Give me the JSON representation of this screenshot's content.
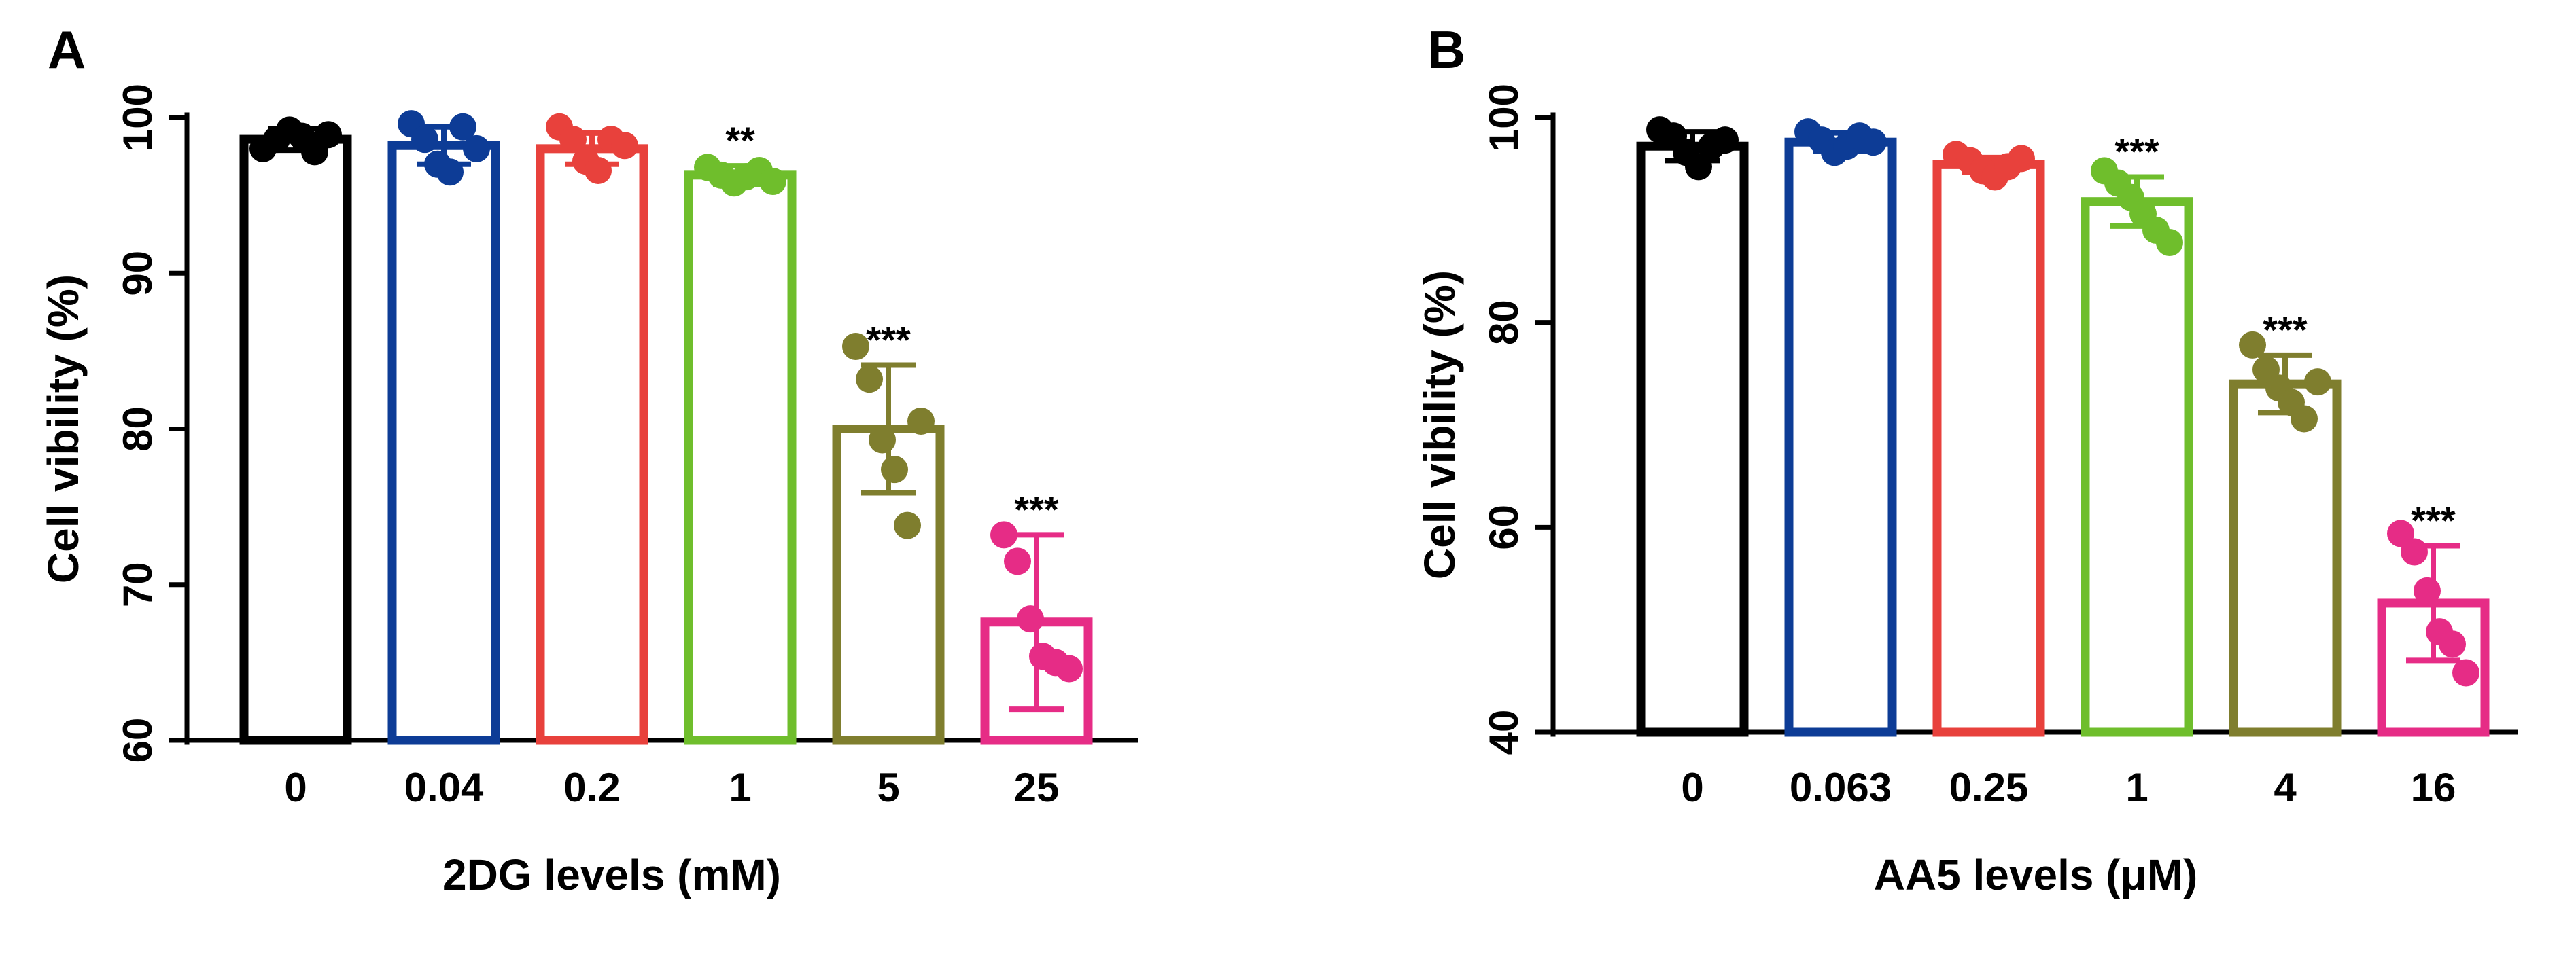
{
  "chart_data": [
    {
      "type": "bar",
      "panel_label": "A",
      "xlabel": "2DG levels (mM)",
      "ylabel": "Cell vibility (%)",
      "ylim": [
        60,
        100
      ],
      "yticks": [
        "60",
        "70",
        "80",
        "90",
        "100"
      ],
      "categories": [
        "0",
        "0.04",
        "0.2",
        "1",
        "5",
        "25"
      ],
      "colors": [
        "#000000",
        "#0d3c96",
        "#e8413c",
        "#6fbe2c",
        "#7f7e2e",
        "#e62c86"
      ],
      "values": [
        98.6,
        98.2,
        98.0,
        96.3,
        80.0,
        67.6
      ],
      "errors": [
        0.7,
        1.2,
        1.0,
        0.6,
        4.1,
        5.6
      ],
      "points": [
        [
          98.0,
          98.6,
          99.2,
          98.8,
          97.8,
          98.9
        ],
        [
          99.6,
          98.6,
          97.0,
          96.5,
          99.4,
          98.0
        ],
        [
          99.4,
          98.6,
          97.2,
          96.6,
          98.6,
          98.2
        ],
        [
          96.8,
          96.3,
          95.8,
          96.2,
          96.6,
          95.9
        ],
        [
          85.3,
          83.2,
          79.3,
          77.4,
          73.8,
          80.5
        ],
        [
          73.2,
          71.5,
          67.8,
          65.4,
          65.0,
          64.6
        ]
      ],
      "significance": [
        "",
        "",
        "",
        "**",
        "***",
        "***"
      ]
    },
    {
      "type": "bar",
      "panel_label": "B",
      "xlabel": "AA5 levels (μM)",
      "ylabel": "Cell vibility (%)",
      "ylim": [
        40,
        100
      ],
      "yticks": [
        "40",
        "60",
        "80",
        "100"
      ],
      "categories": [
        "0",
        "0.063",
        "0.25",
        "1",
        "4",
        "16"
      ],
      "colors": [
        "#000000",
        "#0d3c96",
        "#e8413c",
        "#6fbe2c",
        "#7f7e2e",
        "#e62c86"
      ],
      "values": [
        97.2,
        97.6,
        95.4,
        91.8,
        74.0,
        52.6
      ],
      "errors": [
        1.4,
        0.9,
        0.7,
        2.4,
        2.8,
        5.6
      ],
      "points": [
        [
          98.8,
          98.2,
          96.6,
          95.2,
          97.2,
          97.8
        ],
        [
          98.6,
          97.8,
          96.6,
          97.2,
          98.2,
          97.6
        ],
        [
          96.4,
          95.8,
          94.8,
          94.2,
          95.2,
          96.0
        ],
        [
          94.8,
          93.6,
          92.2,
          90.6,
          89.0,
          87.8
        ],
        [
          77.8,
          75.4,
          73.6,
          72.2,
          70.6,
          74.2
        ],
        [
          59.4,
          57.6,
          53.8,
          49.8,
          48.6,
          45.8
        ]
      ],
      "significance": [
        "",
        "",
        "",
        "***",
        "***",
        "***"
      ]
    }
  ]
}
